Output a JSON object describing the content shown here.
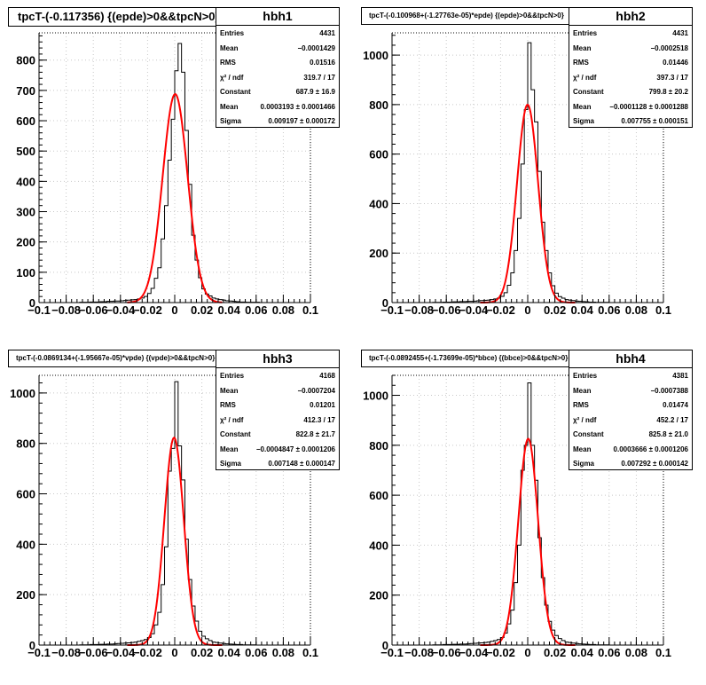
{
  "chart_data": [
    {
      "type": "bar",
      "name": "hbh1",
      "title": "tpcT-(-0.117356) {(epde)>0&&tpcN>0}",
      "title_size": 13,
      "xlim": [
        -0.1,
        0.1
      ],
      "ylim": [
        0,
        890
      ],
      "xticks": [
        -0.1,
        -0.08,
        -0.06,
        -0.04,
        -0.02,
        0,
        0.02,
        0.04,
        0.06,
        0.08,
        0.1
      ],
      "yticks": [
        0,
        100,
        200,
        300,
        400,
        500,
        600,
        700,
        800
      ],
      "grid": true,
      "bins": 80,
      "values": [
        0,
        0,
        0,
        0,
        0,
        0,
        0,
        0,
        0,
        0,
        0,
        0,
        1,
        1,
        1,
        2,
        2,
        2,
        3,
        3,
        4,
        4,
        5,
        5,
        6,
        7,
        8,
        9,
        10,
        12,
        15,
        20,
        30,
        47,
        80,
        115,
        210,
        320,
        470,
        605,
        765,
        855,
        760,
        568,
        390,
        222,
        140,
        82,
        45,
        28,
        22,
        15,
        12,
        10,
        8,
        6,
        5,
        4,
        3,
        2,
        2,
        1,
        1,
        1,
        1,
        0,
        0,
        0,
        0,
        0,
        0,
        0,
        0,
        0,
        0,
        0,
        0,
        0,
        0,
        0
      ],
      "fit": {
        "constant": 687.9,
        "mean": 0.0003193,
        "sigma": 0.009197
      },
      "stats": [
        {
          "key": "Entries",
          "value": "4431"
        },
        {
          "key": "Mean",
          "value": "−0.0001429"
        },
        {
          "key": "RMS",
          "value": "0.01516"
        },
        {
          "key": "χ² / ndf",
          "value": "319.7 / 17"
        },
        {
          "key": "Constant",
          "value": "687.9 ± 16.9"
        },
        {
          "key": "Mean",
          "value": "0.0003193 ± 0.0001466"
        },
        {
          "key": "Sigma",
          "value": "0.009197 ± 0.000172"
        }
      ]
    },
    {
      "type": "bar",
      "name": "hbh2",
      "title": "tpcT-(-0.100968+(-1.27763e-05)*epde) {(epde)>0&&tpcN>0}",
      "title_size": 8,
      "xlim": [
        -0.1,
        0.1
      ],
      "ylim": [
        0,
        1090
      ],
      "xticks": [
        -0.1,
        -0.08,
        -0.06,
        -0.04,
        -0.02,
        0,
        0.02,
        0.04,
        0.06,
        0.08,
        0.1
      ],
      "yticks": [
        0,
        200,
        400,
        600,
        800,
        1000
      ],
      "grid": true,
      "bins": 80,
      "values": [
        0,
        0,
        0,
        0,
        0,
        0,
        0,
        0,
        0,
        0,
        0,
        0,
        1,
        1,
        1,
        2,
        2,
        2,
        3,
        3,
        4,
        4,
        5,
        5,
        6,
        7,
        8,
        9,
        10,
        12,
        15,
        18,
        25,
        40,
        70,
        120,
        210,
        340,
        560,
        780,
        1050,
        860,
        730,
        530,
        325,
        210,
        120,
        68,
        38,
        24,
        18,
        12,
        10,
        8,
        6,
        5,
        4,
        3,
        2,
        2,
        1,
        1,
        1,
        1,
        0,
        0,
        0,
        0,
        0,
        0,
        0,
        0,
        0,
        0,
        0,
        0,
        0,
        0,
        0,
        0
      ],
      "fit": {
        "constant": 799.8,
        "mean": -0.0001128,
        "sigma": 0.007755
      },
      "stats": [
        {
          "key": "Entries",
          "value": "4431"
        },
        {
          "key": "Mean",
          "value": "−0.0002518"
        },
        {
          "key": "RMS",
          "value": "0.01446"
        },
        {
          "key": "χ² / ndf",
          "value": "397.3 / 17"
        },
        {
          "key": "Constant",
          "value": "799.8 ± 20.2"
        },
        {
          "key": "Mean",
          "value": "−0.0001128 ± 0.0001288"
        },
        {
          "key": "Sigma",
          "value": "0.007755 ± 0.000151"
        }
      ]
    },
    {
      "type": "bar",
      "name": "hbh3",
      "title": "tpcT-(-0.0869134+(-1.95667e-05)*vpde) {(vpde)>0&&tpcN>0}",
      "title_size": 8,
      "xlim": [
        -0.1,
        0.1
      ],
      "ylim": [
        0,
        1070
      ],
      "xticks": [
        -0.1,
        -0.08,
        -0.06,
        -0.04,
        -0.02,
        0,
        0.02,
        0.04,
        0.06,
        0.08,
        0.1
      ],
      "yticks": [
        0,
        200,
        400,
        600,
        800,
        1000
      ],
      "grid": true,
      "bins": 80,
      "values": [
        0,
        0,
        0,
        0,
        0,
        0,
        0,
        0,
        0,
        0,
        0,
        0,
        1,
        1,
        1,
        2,
        2,
        2,
        3,
        3,
        4,
        4,
        5,
        6,
        7,
        8,
        9,
        10,
        12,
        15,
        18,
        22,
        30,
        45,
        80,
        130,
        240,
        390,
        690,
        780,
        1045,
        790,
        655,
        420,
        260,
        155,
        95,
        55,
        35,
        25,
        18,
        12,
        10,
        8,
        6,
        5,
        4,
        3,
        2,
        2,
        1,
        1,
        1,
        1,
        0,
        0,
        0,
        0,
        0,
        0,
        0,
        0,
        0,
        0,
        0,
        0,
        0,
        0,
        0,
        0
      ],
      "fit": {
        "constant": 822.8,
        "mean": -0.0004847,
        "sigma": 0.007148
      },
      "stats": [
        {
          "key": "Entries",
          "value": "4168"
        },
        {
          "key": "Mean",
          "value": "−0.0007204"
        },
        {
          "key": "RMS",
          "value": "0.01201"
        },
        {
          "key": "χ² / ndf",
          "value": "412.3 / 17"
        },
        {
          "key": "Constant",
          "value": "822.8 ± 21.7"
        },
        {
          "key": "Mean",
          "value": "−0.0004847 ± 0.0001206"
        },
        {
          "key": "Sigma",
          "value": "0.007148 ± 0.000147"
        }
      ]
    },
    {
      "type": "bar",
      "name": "hbh4",
      "title": "tpcT-(-0.0892455+(-1.73699e-05)*bbce) {(bbce)>0&&tpcN>0}",
      "title_size": 8,
      "xlim": [
        -0.1,
        0.1
      ],
      "ylim": [
        0,
        1080
      ],
      "xticks": [
        -0.1,
        -0.08,
        -0.06,
        -0.04,
        -0.02,
        0,
        0.02,
        0.04,
        0.06,
        0.08,
        0.1
      ],
      "yticks": [
        0,
        200,
        400,
        600,
        800,
        1000
      ],
      "grid": true,
      "bins": 80,
      "values": [
        0,
        0,
        0,
        0,
        0,
        0,
        0,
        0,
        0,
        0,
        0,
        0,
        1,
        1,
        1,
        2,
        2,
        2,
        3,
        3,
        4,
        4,
        5,
        6,
        7,
        8,
        9,
        10,
        12,
        15,
        18,
        22,
        30,
        48,
        85,
        140,
        250,
        400,
        700,
        800,
        1050,
        800,
        660,
        430,
        270,
        160,
        95,
        60,
        38,
        26,
        18,
        12,
        10,
        8,
        6,
        5,
        4,
        3,
        2,
        2,
        1,
        1,
        1,
        1,
        0,
        0,
        0,
        0,
        0,
        0,
        0,
        0,
        0,
        0,
        0,
        0,
        0,
        0,
        0,
        0
      ],
      "fit": {
        "constant": 825.8,
        "mean": 0.0003666,
        "sigma": 0.007292
      },
      "stats": [
        {
          "key": "Entries",
          "value": "4381"
        },
        {
          "key": "Mean",
          "value": "−0.0007388"
        },
        {
          "key": "RMS",
          "value": "0.01474"
        },
        {
          "key": "χ² / ndf",
          "value": "452.2 / 17"
        },
        {
          "key": "Constant",
          "value": "825.8 ± 21.0"
        },
        {
          "key": "Mean",
          "value": "0.0003666 ± 0.0001206"
        },
        {
          "key": "Sigma",
          "value": "0.007292 ± 0.000142"
        }
      ]
    }
  ],
  "colors": {
    "histogram": "#000000",
    "fit": "#ff0000",
    "grid": "#c8c8c8",
    "background": "#ffffff"
  },
  "tick_labels_x": [
    "−0.1",
    "−0.08",
    "−0.06",
    "−0.04",
    "−0.02",
    "0",
    "0.02",
    "0.04",
    "0.06",
    "0.08",
    "0.1"
  ]
}
